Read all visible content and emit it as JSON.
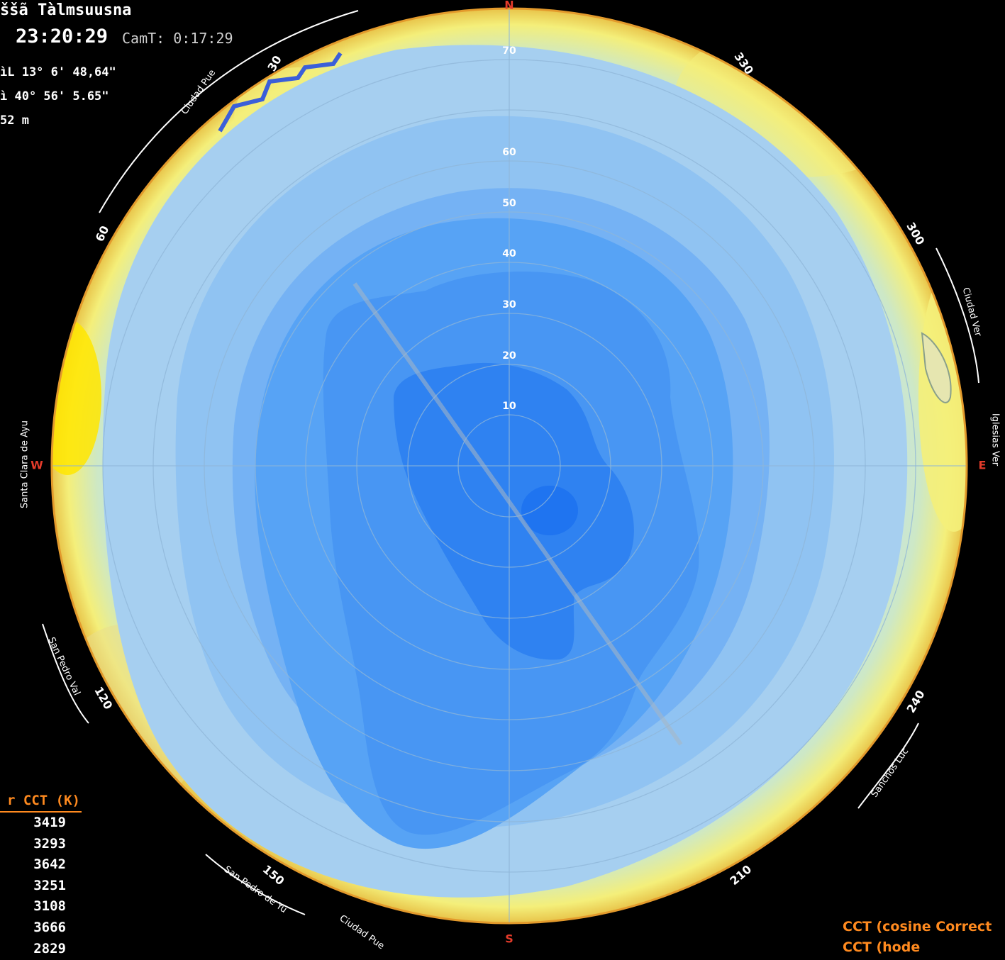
{
  "header": {
    "location_name": "ššã Tàlmsuusna",
    "time": "23:20:29",
    "cam_time": "CamT: 0:17:29",
    "latitude": "ìL 13° 6' 48,64\"",
    "longitude": "ì 40° 56' 5.65\"",
    "altitude": "52 m"
  },
  "cct_table": {
    "header": "r CCT (K)",
    "rows": [
      "3419",
      "3293",
      "3642",
      "3251",
      "3108",
      "3666",
      "2829"
    ]
  },
  "legend": {
    "line1": "CCT (cosine Correct",
    "line2": "CCT (hode"
  },
  "map": {
    "zenith_labels": [
      "70",
      "60",
      "50",
      "40",
      "30",
      "20",
      "10"
    ],
    "azimuth_labels": [
      "30",
      "60",
      "120",
      "150",
      "210",
      "240",
      "300",
      "330"
    ],
    "cardinal_labels": [
      "N",
      "E",
      "S",
      "W"
    ],
    "place_labels": [
      "Ciudad Pue",
      "Ciudad Pue",
      "Santa Clara de Ayu",
      "San Pedro Val",
      "Ciudad Ver",
      "Sanchos Luc",
      "Iglesias Ver",
      "San Pedro de Yu"
    ],
    "colors": {
      "deep_blue": "#1f74f0",
      "mid_blue": "#3d8cf2",
      "light_blue": "#57a3f5",
      "pale_blue": "#82bdf4",
      "paler_blue": "#a6cff0",
      "sky_pale": "#c4e2ea",
      "pale_green": "#cde8c6",
      "yellow": "#f4ef7a",
      "bright_yellow": "#ffe600",
      "orange_rim": "#e39a2c",
      "orange_text": "#ff8a1f"
    }
  }
}
